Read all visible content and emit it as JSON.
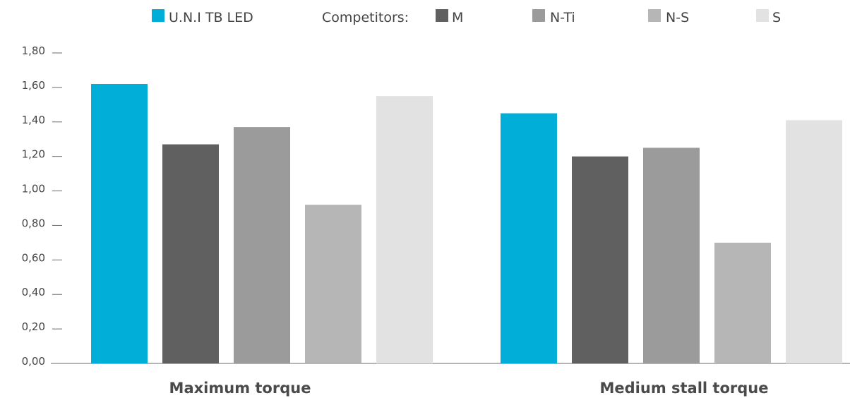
{
  "legend": {
    "competitors_label": "Competitors:",
    "items": [
      {
        "label": "U.N.I TB LED",
        "color": "#00aed8"
      },
      {
        "label": "M",
        "color": "#606060"
      },
      {
        "label": "N-Ti",
        "color": "#9b9b9b"
      },
      {
        "label": "N-S",
        "color": "#b6b6b6"
      },
      {
        "label": "S",
        "color": "#e2e2e2"
      }
    ]
  },
  "chart_data": {
    "type": "bar",
    "title": "",
    "xlabel": "",
    "ylabel": "",
    "categories": [
      "Maximum torque",
      "Medium stall torque"
    ],
    "series": [
      {
        "name": "U.N.I TB LED",
        "color": "#00aed8",
        "values": [
          1.62,
          1.45
        ]
      },
      {
        "name": "M",
        "color": "#606060",
        "values": [
          1.27,
          1.2
        ]
      },
      {
        "name": "N-Ti",
        "color": "#9b9b9b",
        "values": [
          1.37,
          1.25
        ]
      },
      {
        "name": "N-S",
        "color": "#b6b6b6",
        "values": [
          0.92,
          0.7
        ]
      },
      {
        "name": "S",
        "color": "#e2e2e2",
        "values": [
          1.55,
          1.41
        ]
      }
    ],
    "ylim": [
      0,
      1.8
    ],
    "yticks": [
      "0,00",
      "0,20",
      "0,40",
      "0,60",
      "0,80",
      "1,00",
      "1,20",
      "1,40",
      "1,60",
      "1,80"
    ],
    "grid": false,
    "legend_position": "top"
  }
}
